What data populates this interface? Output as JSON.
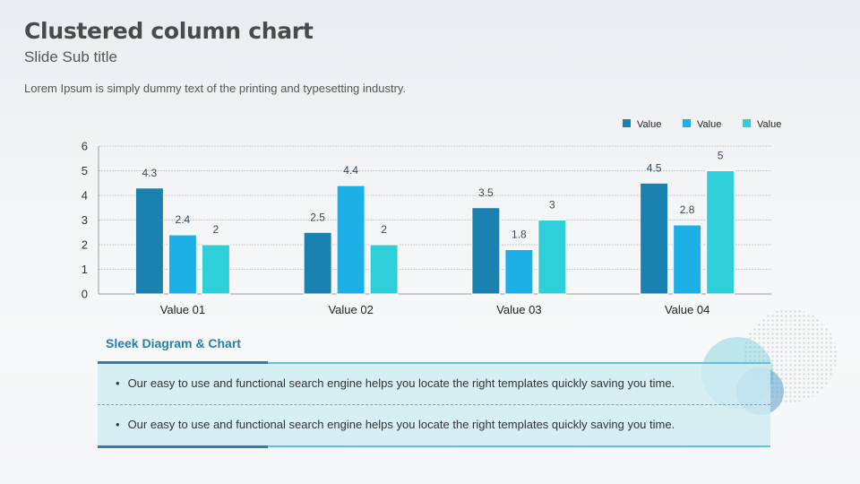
{
  "slide": {
    "title": "Clustered column chart",
    "subtitle": "Slide Sub title",
    "description": "Lorem Ipsum is simply dummy text of the printing and typesetting industry."
  },
  "chart_data": {
    "type": "bar",
    "categories": [
      "Value 01",
      "Value 02",
      "Value 03",
      "Value 04"
    ],
    "series": [
      {
        "name": "Value",
        "values": [
          4.3,
          2.5,
          3.5,
          4.5
        ],
        "color": "#1a81b1"
      },
      {
        "name": "Value",
        "values": [
          2.4,
          4.4,
          1.8,
          2.8
        ],
        "color": "#1cb0e6"
      },
      {
        "name": "Value",
        "values": [
          2,
          2,
          3,
          5
        ],
        "color": "#2fcfd9"
      }
    ],
    "ylim": [
      0,
      6
    ],
    "yticks": [
      0,
      1,
      2,
      3,
      4,
      5,
      6
    ],
    "grid": true,
    "legend": "top-right",
    "data_labels": true
  },
  "section": {
    "title": "Sleek Diagram & Chart",
    "bullets": [
      "Our easy to use and functional search engine helps you locate the right templates quickly saving you time.",
      "Our easy to use and functional search engine helps you locate the right templates quickly saving you time."
    ]
  },
  "bullet_char": "•",
  "colors": {
    "title": "#4a4a4a",
    "accent": "#1f7fae",
    "box_fill": "#d0ebf2"
  }
}
